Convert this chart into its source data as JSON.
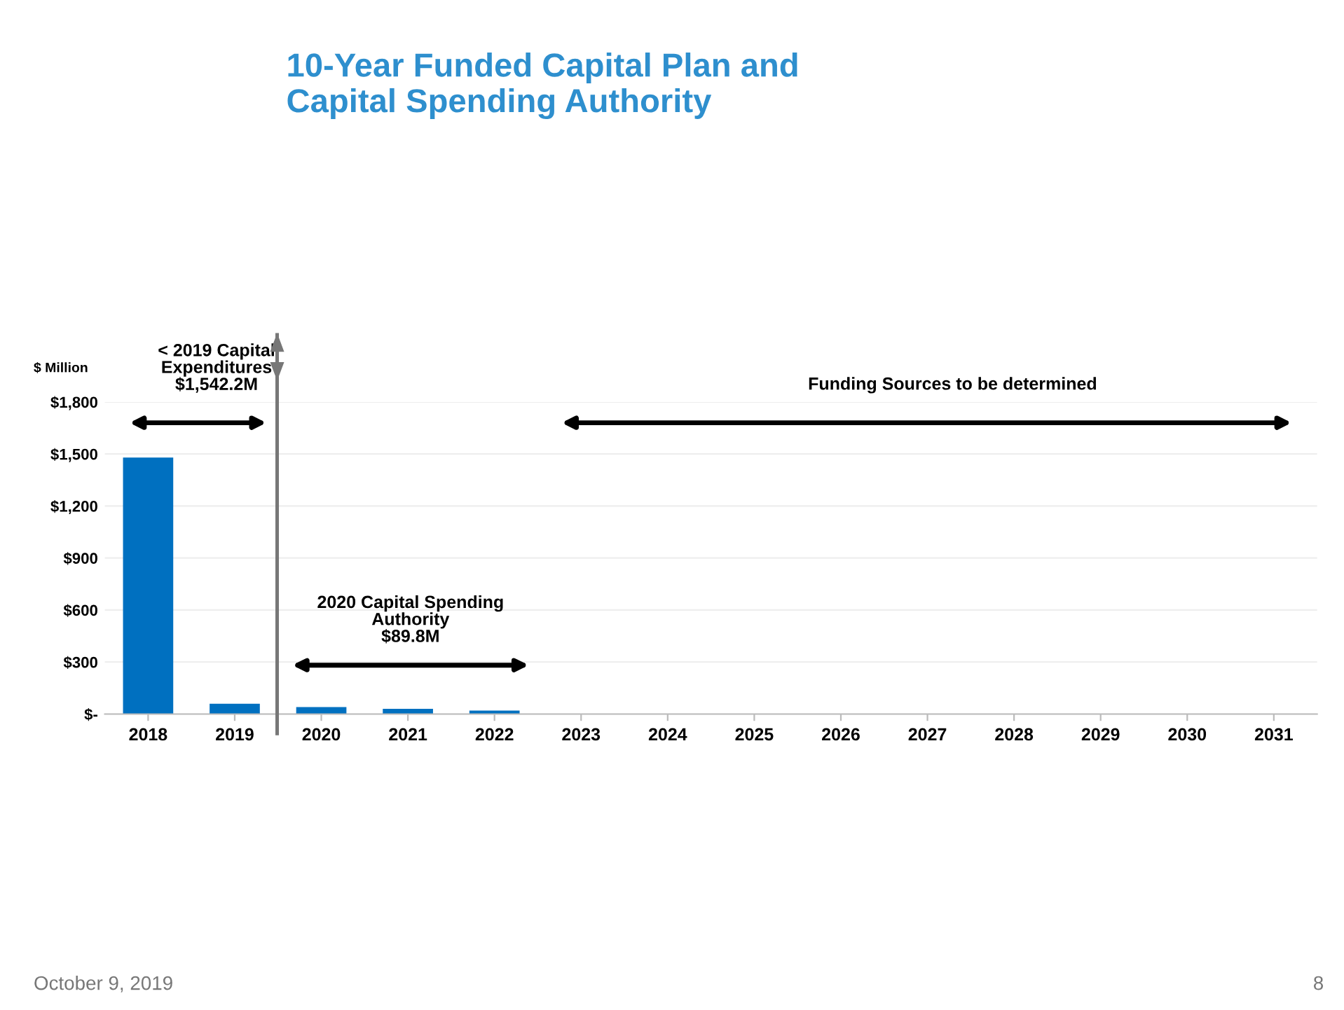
{
  "chart_data": {
    "type": "bar",
    "title": "10-Year Funded Capital Plan and\nCapital Spending Authority",
    "ylabel": "$ Million",
    "categories": [
      "2018",
      "2019",
      "2020",
      "2021",
      "2022",
      "2023",
      "2024",
      "2025",
      "2026",
      "2027",
      "2028",
      "2029",
      "2030",
      "2031"
    ],
    "values": [
      1480,
      60,
      40,
      30,
      20,
      0,
      0,
      0,
      0,
      0,
      0,
      0,
      0,
      0
    ],
    "color": "#0070c0",
    "ylim": [
      0,
      1800
    ],
    "yticks": [
      {
        "value": 0,
        "label": "$-"
      },
      {
        "value": 300,
        "label": "$300"
      },
      {
        "value": 600,
        "label": "$600"
      },
      {
        "value": 900,
        "label": "$900"
      },
      {
        "value": 1200,
        "label": "$1,200"
      },
      {
        "value": 1500,
        "label": "$1,500"
      },
      {
        "value": 1800,
        "label": "$1,800"
      }
    ],
    "grid": "y",
    "annotations": [
      "< 2019 Capital\nExpenditures\n$1,542.2M",
      "2020 Capital Spending\nAuthority\n$89.8M",
      "Funding Sources to be determined",
      "October 9, 2019",
      "8"
    ]
  }
}
